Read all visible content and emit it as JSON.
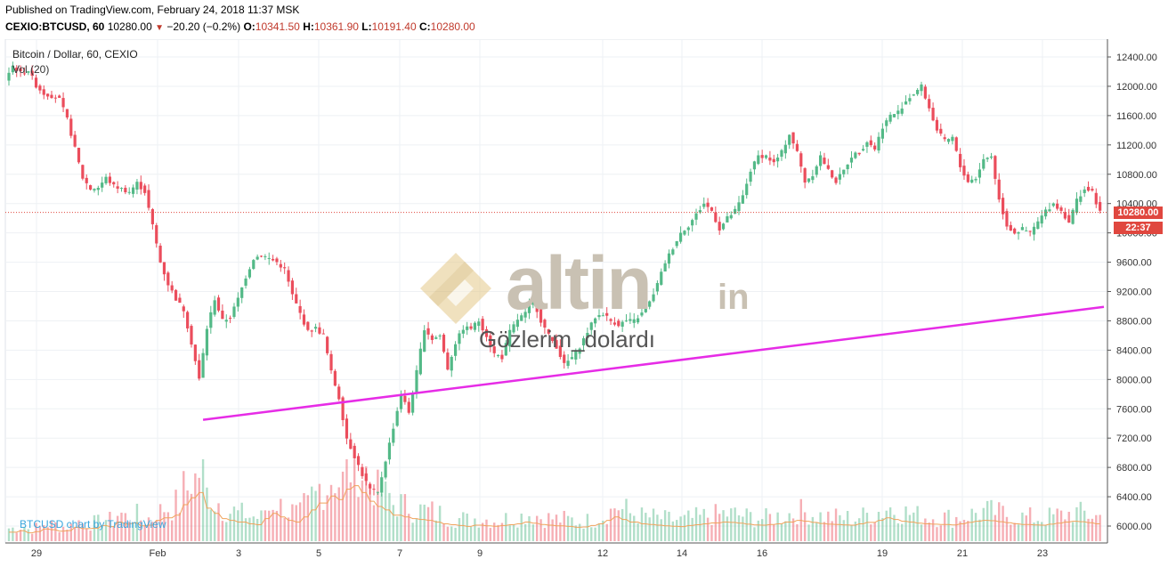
{
  "header": {
    "published": "Published on TradingView.com, February 24, 2018 11:37 MSK",
    "symbol": "CEXIO:BTCUSD, 60",
    "last": "10280.00",
    "change_arrow": "▼",
    "change": "−20.20 (−0.2%)",
    "o_label": "O:",
    "o_value": "10341.50",
    "h_label": "H:",
    "h_value": "10361.90",
    "l_label": "L:",
    "l_value": "10191.40",
    "c_label": "C:",
    "c_value": "10280.00"
  },
  "legend": {
    "title": "Bitcoin / Dollar, 60, CEXIO",
    "volume": "Vol (20)"
  },
  "credit": "BTCUSD chart by TradingView",
  "watermark": {
    "brand": "altin",
    "suffix": "in"
  },
  "annotation": "Gözlerim_dolardı",
  "price_tag": "10280.00",
  "time_tag": "22:37",
  "colors": {
    "up": "#53b987",
    "down": "#eb4d5c",
    "trendline": "#e62ce6",
    "volume_ma": "#f0a35c",
    "grid": "#eef1f4",
    "price_line": "#e0473f",
    "credit": "#3aa6dd"
  },
  "chart_data": {
    "type": "candlestick",
    "title": "Bitcoin / Dollar, 60, CEXIO",
    "y_ticks": [
      "12400.00",
      "12000.00",
      "11600.00",
      "11200.00",
      "10800.00",
      "10400.00",
      "10000.00",
      "9600.00",
      "9200.00",
      "8800.00",
      "8400.00",
      "8000.00",
      "7600.00",
      "7200.00",
      "6800.00",
      "6400.00",
      "6000.00"
    ],
    "ylim": [
      5800,
      12600
    ],
    "x_ticks": [
      "29",
      "Feb",
      "3",
      "5",
      "7",
      "9",
      "12",
      "14",
      "16",
      "19",
      "21",
      "23"
    ],
    "last_price": 10280,
    "price_path": [
      [
        0,
        12100
      ],
      [
        2,
        12280
      ],
      [
        4,
        12180
      ],
      [
        6,
        12220
      ],
      [
        8,
        12010
      ],
      [
        10,
        11900
      ],
      [
        12,
        11870
      ],
      [
        14,
        11820
      ],
      [
        16,
        11550
      ],
      [
        18,
        11150
      ],
      [
        20,
        10750
      ],
      [
        22,
        10600
      ],
      [
        24,
        10620
      ],
      [
        26,
        10750
      ],
      [
        28,
        10640
      ],
      [
        30,
        10600
      ],
      [
        32,
        10560
      ],
      [
        34,
        10680
      ],
      [
        36,
        10560
      ],
      [
        38,
        10100
      ],
      [
        40,
        9600
      ],
      [
        42,
        9300
      ],
      [
        44,
        9100
      ],
      [
        46,
        8950
      ],
      [
        48,
        8500
      ],
      [
        50,
        8000
      ],
      [
        52,
        8700
      ],
      [
        54,
        9100
      ],
      [
        56,
        8800
      ],
      [
        58,
        8850
      ],
      [
        60,
        9100
      ],
      [
        62,
        9400
      ],
      [
        64,
        9650
      ],
      [
        66,
        9700
      ],
      [
        68,
        9650
      ],
      [
        70,
        9600
      ],
      [
        72,
        9500
      ],
      [
        74,
        9150
      ],
      [
        76,
        8900
      ],
      [
        78,
        8650
      ],
      [
        80,
        8700
      ],
      [
        82,
        8600
      ],
      [
        84,
        8100
      ],
      [
        86,
        7750
      ],
      [
        88,
        7200
      ],
      [
        90,
        6950
      ],
      [
        92,
        6700
      ],
      [
        94,
        6500
      ],
      [
        96,
        6450
      ],
      [
        98,
        6900
      ],
      [
        100,
        7350
      ],
      [
        102,
        7800
      ],
      [
        104,
        7550
      ],
      [
        106,
        8100
      ],
      [
        108,
        8700
      ],
      [
        110,
        8550
      ],
      [
        112,
        8600
      ],
      [
        114,
        8150
      ],
      [
        116,
        8500
      ],
      [
        118,
        8700
      ],
      [
        120,
        8700
      ],
      [
        122,
        8800
      ],
      [
        124,
        8600
      ],
      [
        126,
        8350
      ],
      [
        128,
        8300
      ],
      [
        130,
        8650
      ],
      [
        132,
        8820
      ],
      [
        134,
        8900
      ],
      [
        136,
        9100
      ],
      [
        138,
        8800
      ],
      [
        140,
        8600
      ],
      [
        142,
        8450
      ],
      [
        144,
        8200
      ],
      [
        146,
        8300
      ],
      [
        148,
        8450
      ],
      [
        150,
        8650
      ],
      [
        152,
        8850
      ],
      [
        154,
        8900
      ],
      [
        156,
        8800
      ],
      [
        158,
        8750
      ],
      [
        160,
        8800
      ],
      [
        162,
        8800
      ],
      [
        164,
        8900
      ],
      [
        166,
        9050
      ],
      [
        168,
        9300
      ],
      [
        170,
        9600
      ],
      [
        172,
        9800
      ],
      [
        174,
        10000
      ],
      [
        176,
        10100
      ],
      [
        178,
        10250
      ],
      [
        180,
        10400
      ],
      [
        182,
        10300
      ],
      [
        184,
        10050
      ],
      [
        186,
        10200
      ],
      [
        188,
        10300
      ],
      [
        190,
        10500
      ],
      [
        192,
        10850
      ],
      [
        194,
        11050
      ],
      [
        196,
        11050
      ],
      [
        198,
        10950
      ],
      [
        200,
        11100
      ],
      [
        202,
        11350
      ],
      [
        204,
        11100
      ],
      [
        206,
        10700
      ],
      [
        208,
        10800
      ],
      [
        210,
        11050
      ],
      [
        212,
        10850
      ],
      [
        214,
        10700
      ],
      [
        216,
        10850
      ],
      [
        218,
        11050
      ],
      [
        220,
        11100
      ],
      [
        222,
        11250
      ],
      [
        224,
        11150
      ],
      [
        226,
        11450
      ],
      [
        228,
        11600
      ],
      [
        230,
        11650
      ],
      [
        232,
        11800
      ],
      [
        234,
        11900
      ],
      [
        236,
        12000
      ],
      [
        238,
        11700
      ],
      [
        240,
        11400
      ],
      [
        242,
        11250
      ],
      [
        244,
        11300
      ],
      [
        246,
        10900
      ],
      [
        248,
        10700
      ],
      [
        250,
        10750
      ],
      [
        252,
        11000
      ],
      [
        254,
        11050
      ],
      [
        256,
        10450
      ],
      [
        258,
        10100
      ],
      [
        260,
        10000
      ],
      [
        262,
        10050
      ],
      [
        264,
        10000
      ],
      [
        266,
        10150
      ],
      [
        268,
        10300
      ],
      [
        270,
        10400
      ],
      [
        272,
        10300
      ],
      [
        274,
        10150
      ],
      [
        276,
        10450
      ],
      [
        278,
        10600
      ],
      [
        280,
        10550
      ],
      [
        282,
        10280
      ]
    ],
    "trendline": [
      [
        50,
        7450
      ],
      [
        282,
        8990
      ]
    ],
    "volume": [
      52,
      60,
      48,
      55,
      70,
      66,
      58,
      61,
      80,
      72,
      75,
      90,
      84,
      110,
      98,
      105,
      88,
      92,
      120,
      135,
      150,
      210,
      250,
      280,
      190,
      160,
      130,
      120,
      110,
      100,
      95,
      130,
      160,
      140,
      120,
      110,
      140,
      180,
      220,
      260,
      240,
      300,
      320,
      280,
      230,
      200,
      180,
      150,
      140,
      130,
      125,
      120,
      110,
      100,
      95,
      90,
      85,
      92,
      88,
      86,
      90,
      95,
      100,
      110,
      104,
      96,
      92,
      88,
      85,
      80,
      82,
      90,
      100,
      120,
      140,
      125,
      110,
      100,
      96,
      92,
      88,
      86,
      84,
      90,
      95,
      100,
      105,
      110,
      108,
      104,
      98,
      94,
      92,
      96,
      100,
      110,
      120,
      115,
      108,
      102,
      98,
      96,
      94,
      92,
      100,
      108,
      120,
      135,
      125,
      115,
      110,
      104,
      100,
      98,
      96,
      94,
      100,
      108,
      115,
      120,
      118,
      112,
      106,
      100,
      96,
      94,
      92,
      98,
      104,
      110,
      115,
      112,
      106,
      100
    ]
  }
}
